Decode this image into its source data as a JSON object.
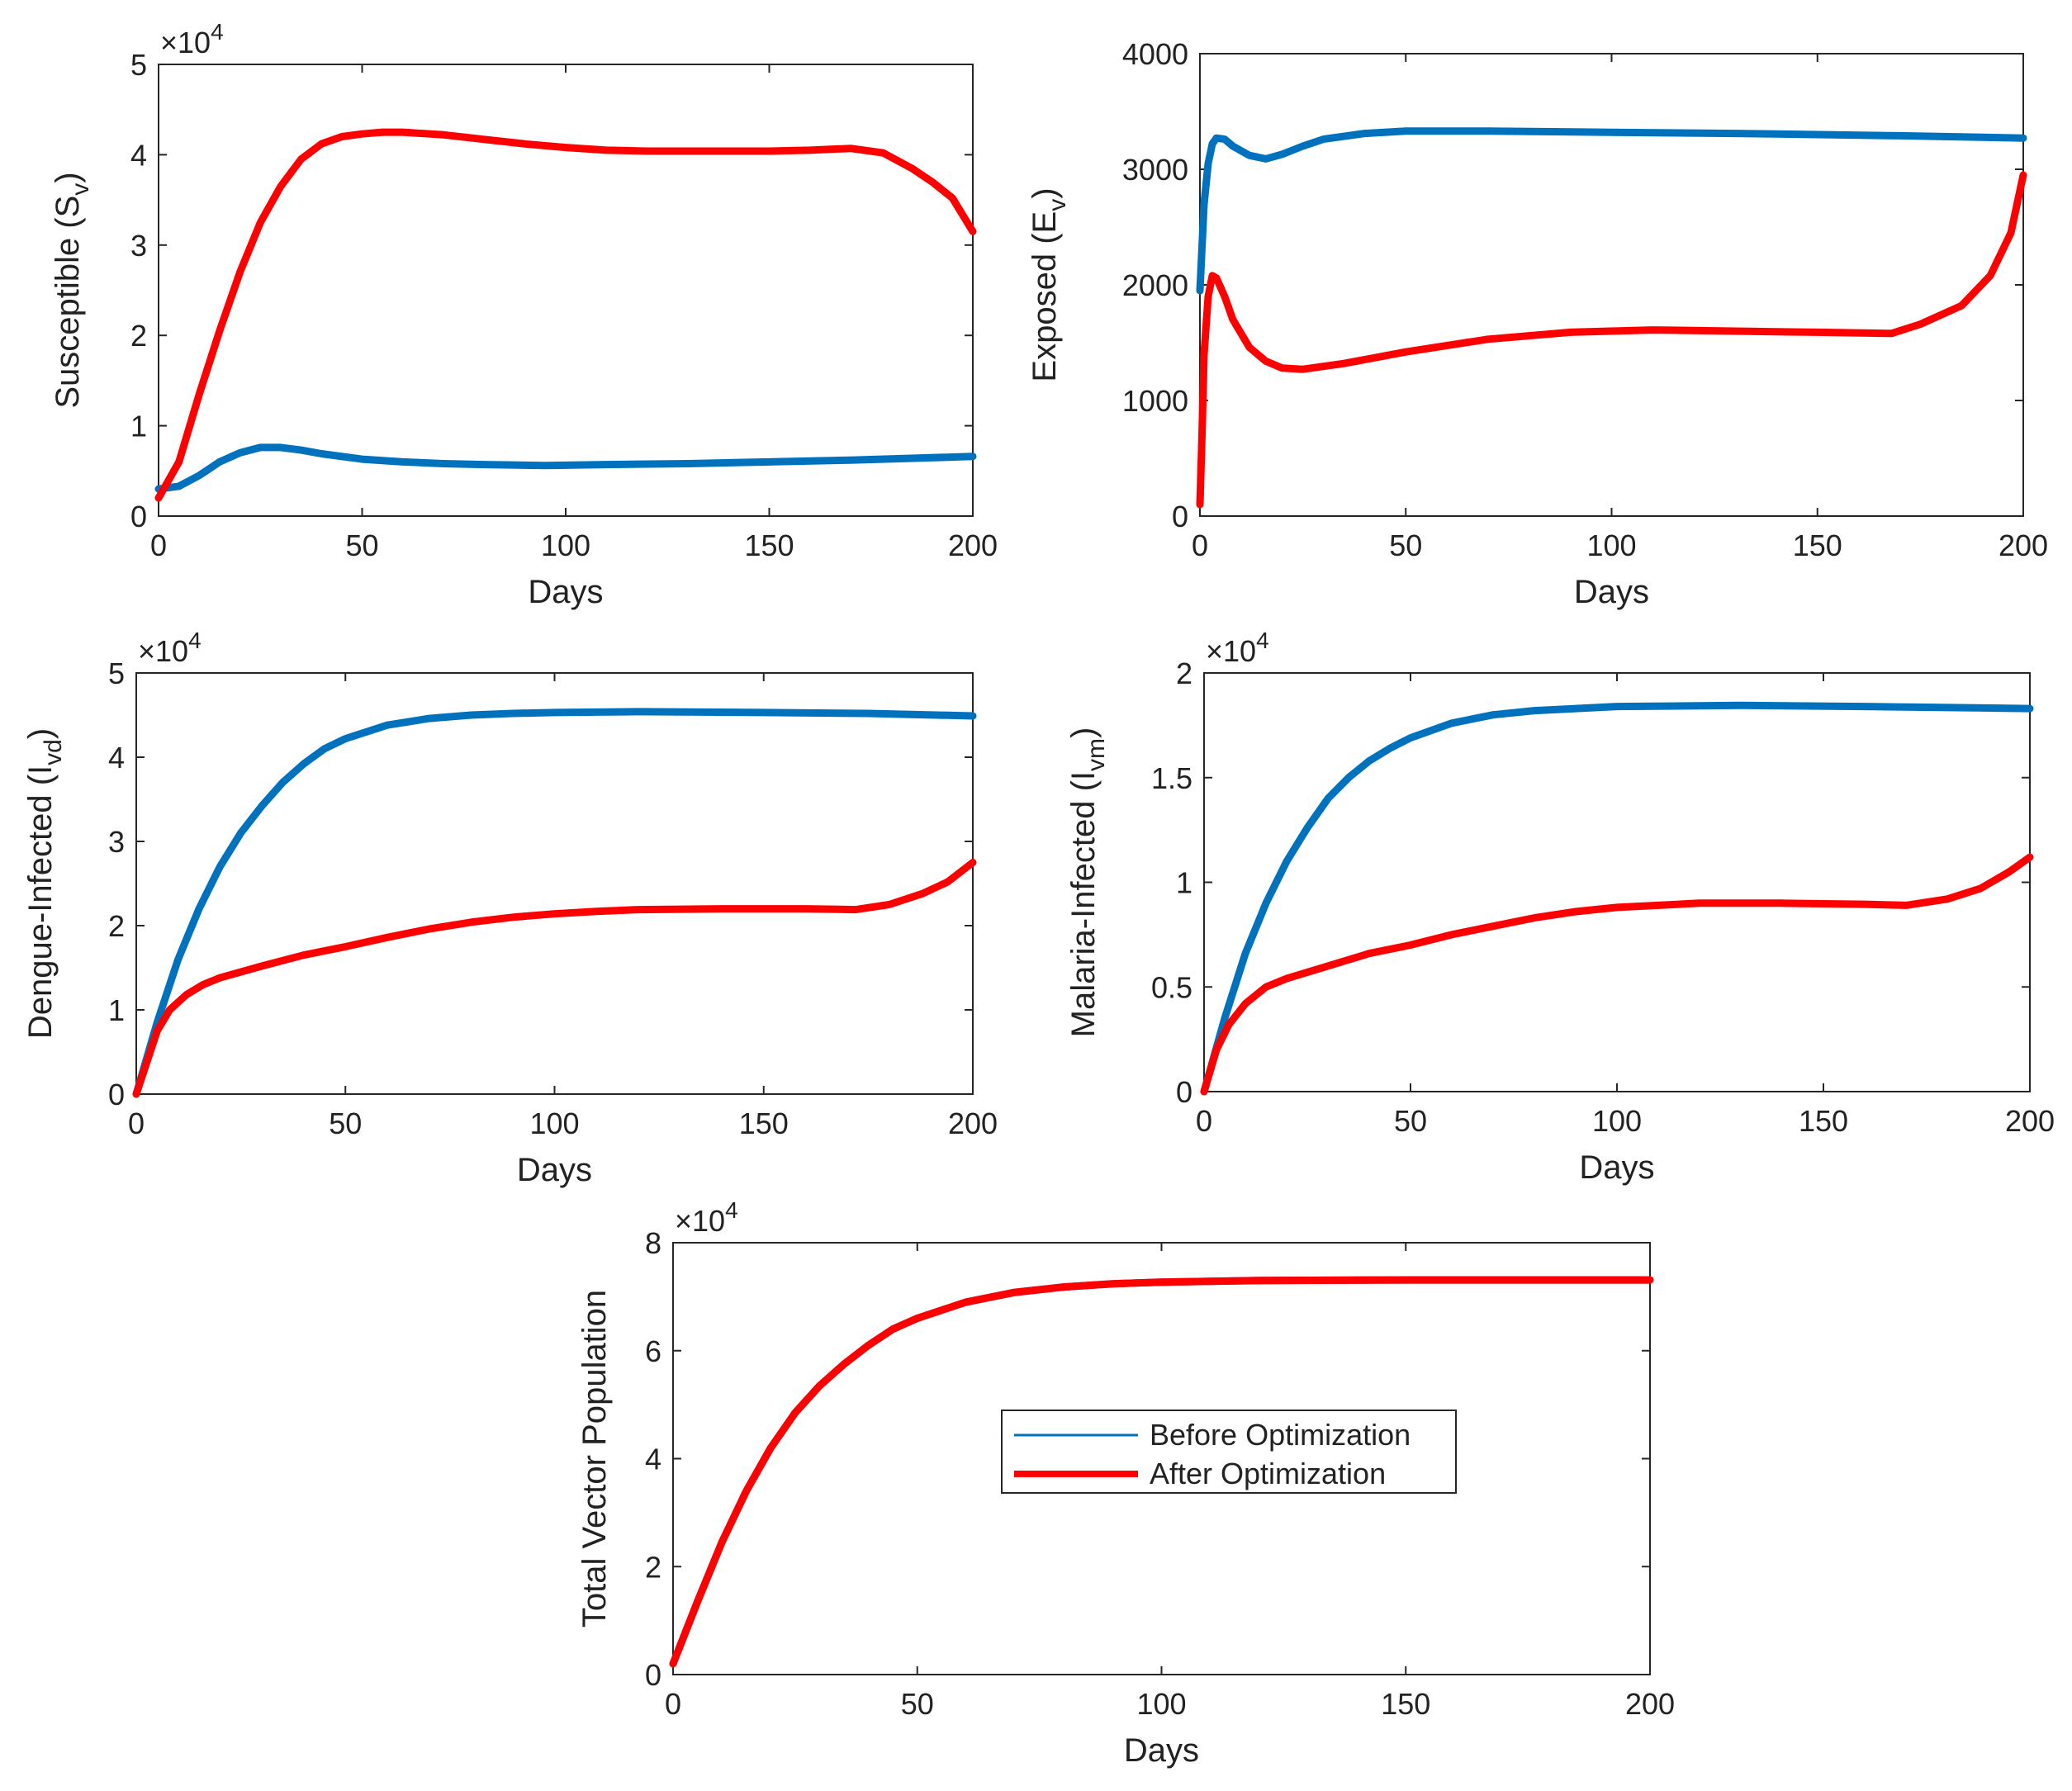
{
  "figure": {
    "legend": {
      "entries": [
        {
          "label": "Before Optimization",
          "color": "#0072BD",
          "style": "thin"
        },
        {
          "label": "After Optimization",
          "color": "#FF0000",
          "style": "thick"
        }
      ],
      "placement": "center of bottom panel"
    }
  },
  "chart_data": [
    {
      "id": "susceptible",
      "type": "line",
      "title": "",
      "xlabel": "Days",
      "ylabel": "Susceptible (S",
      "ylabel_sub": "v",
      "ylabel_tail": ")",
      "multiplier": "×10",
      "multiplier_exp": "4",
      "xlim": [
        0,
        200
      ],
      "ylim": [
        0,
        5
      ],
      "xticks": [
        0,
        50,
        100,
        150,
        200
      ],
      "yticks": [
        0,
        1,
        2,
        3,
        4,
        5
      ],
      "series": [
        {
          "name": "Before Optimization",
          "color": "#0072BD",
          "points": [
            [
              0,
              0.3
            ],
            [
              5,
              0.33
            ],
            [
              10,
              0.45
            ],
            [
              15,
              0.6
            ],
            [
              20,
              0.7
            ],
            [
              25,
              0.76
            ],
            [
              30,
              0.76
            ],
            [
              35,
              0.73
            ],
            [
              40,
              0.69
            ],
            [
              50,
              0.63
            ],
            [
              60,
              0.6
            ],
            [
              70,
              0.58
            ],
            [
              80,
              0.57
            ],
            [
              95,
              0.56
            ],
            [
              110,
              0.57
            ],
            [
              130,
              0.58
            ],
            [
              150,
              0.6
            ],
            [
              170,
              0.62
            ],
            [
              200,
              0.66
            ]
          ]
        },
        {
          "name": "After Optimization",
          "color": "#FF0000",
          "points": [
            [
              0,
              0.2
            ],
            [
              5,
              0.6
            ],
            [
              10,
              1.35
            ],
            [
              15,
              2.05
            ],
            [
              20,
              2.7
            ],
            [
              25,
              3.25
            ],
            [
              30,
              3.65
            ],
            [
              35,
              3.95
            ],
            [
              40,
              4.12
            ],
            [
              45,
              4.2
            ],
            [
              50,
              4.23
            ],
            [
              55,
              4.25
            ],
            [
              60,
              4.25
            ],
            [
              70,
              4.22
            ],
            [
              80,
              4.17
            ],
            [
              90,
              4.12
            ],
            [
              100,
              4.08
            ],
            [
              110,
              4.05
            ],
            [
              120,
              4.04
            ],
            [
              130,
              4.04
            ],
            [
              140,
              4.04
            ],
            [
              150,
              4.04
            ],
            [
              160,
              4.05
            ],
            [
              170,
              4.07
            ],
            [
              178,
              4.02
            ],
            [
              185,
              3.85
            ],
            [
              190,
              3.7
            ],
            [
              195,
              3.52
            ],
            [
              200,
              3.15
            ]
          ]
        }
      ]
    },
    {
      "id": "exposed",
      "type": "line",
      "title": "",
      "xlabel": "Days",
      "ylabel": "Exposed (E",
      "ylabel_sub": "v",
      "ylabel_tail": ")",
      "multiplier": "",
      "multiplier_exp": "",
      "xlim": [
        0,
        200
      ],
      "ylim": [
        0,
        4000
      ],
      "xticks": [
        0,
        50,
        100,
        150,
        200
      ],
      "yticks": [
        0,
        1000,
        2000,
        3000,
        4000
      ],
      "series": [
        {
          "name": "Before Optimization",
          "color": "#0072BD",
          "points": [
            [
              0,
              1950
            ],
            [
              1,
              2700
            ],
            [
              2,
              3050
            ],
            [
              3,
              3220
            ],
            [
              4,
              3270
            ],
            [
              6,
              3260
            ],
            [
              8,
              3200
            ],
            [
              12,
              3120
            ],
            [
              16,
              3090
            ],
            [
              20,
              3130
            ],
            [
              25,
              3200
            ],
            [
              30,
              3260
            ],
            [
              40,
              3310
            ],
            [
              50,
              3330
            ],
            [
              70,
              3330
            ],
            [
              100,
              3320
            ],
            [
              130,
              3310
            ],
            [
              170,
              3290
            ],
            [
              200,
              3270
            ]
          ]
        },
        {
          "name": "After Optimization",
          "color": "#FF0000",
          "points": [
            [
              0,
              100
            ],
            [
              0.5,
              700
            ],
            [
              1,
              1400
            ],
            [
              2,
              1900
            ],
            [
              3,
              2080
            ],
            [
              4,
              2060
            ],
            [
              6,
              1900
            ],
            [
              8,
              1700
            ],
            [
              12,
              1460
            ],
            [
              16,
              1340
            ],
            [
              20,
              1280
            ],
            [
              25,
              1270
            ],
            [
              35,
              1320
            ],
            [
              50,
              1420
            ],
            [
              70,
              1530
            ],
            [
              90,
              1590
            ],
            [
              110,
              1610
            ],
            [
              130,
              1600
            ],
            [
              150,
              1590
            ],
            [
              168,
              1580
            ],
            [
              175,
              1660
            ],
            [
              185,
              1820
            ],
            [
              192,
              2080
            ],
            [
              197,
              2450
            ],
            [
              200,
              2950
            ]
          ]
        }
      ]
    },
    {
      "id": "dengue",
      "type": "line",
      "title": "",
      "xlabel": "Days",
      "ylabel": "Dengue-Infected (I",
      "ylabel_sub": "vd",
      "ylabel_tail": ")",
      "multiplier": "×10",
      "multiplier_exp": "4",
      "xlim": [
        0,
        200
      ],
      "ylim": [
        0,
        5
      ],
      "xticks": [
        0,
        50,
        100,
        150,
        200
      ],
      "yticks": [
        0,
        1,
        2,
        3,
        4,
        5
      ],
      "series": [
        {
          "name": "Before Optimization",
          "color": "#0072BD",
          "points": [
            [
              0,
              0
            ],
            [
              5,
              0.85
            ],
            [
              10,
              1.6
            ],
            [
              15,
              2.2
            ],
            [
              20,
              2.7
            ],
            [
              25,
              3.1
            ],
            [
              30,
              3.42
            ],
            [
              35,
              3.7
            ],
            [
              40,
              3.92
            ],
            [
              45,
              4.1
            ],
            [
              50,
              4.22
            ],
            [
              60,
              4.38
            ],
            [
              70,
              4.46
            ],
            [
              80,
              4.5
            ],
            [
              90,
              4.52
            ],
            [
              100,
              4.53
            ],
            [
              120,
              4.54
            ],
            [
              150,
              4.53
            ],
            [
              175,
              4.52
            ],
            [
              200,
              4.49
            ]
          ]
        },
        {
          "name": "After Optimization",
          "color": "#FF0000",
          "points": [
            [
              0,
              0
            ],
            [
              2,
              0.3
            ],
            [
              5,
              0.75
            ],
            [
              8,
              1.0
            ],
            [
              12,
              1.18
            ],
            [
              16,
              1.3
            ],
            [
              20,
              1.38
            ],
            [
              30,
              1.52
            ],
            [
              40,
              1.65
            ],
            [
              50,
              1.75
            ],
            [
              60,
              1.86
            ],
            [
              70,
              1.96
            ],
            [
              80,
              2.04
            ],
            [
              90,
              2.1
            ],
            [
              100,
              2.14
            ],
            [
              110,
              2.17
            ],
            [
              120,
              2.19
            ],
            [
              140,
              2.2
            ],
            [
              160,
              2.2
            ],
            [
              172,
              2.19
            ],
            [
              180,
              2.25
            ],
            [
              188,
              2.38
            ],
            [
              194,
              2.52
            ],
            [
              200,
              2.75
            ]
          ]
        }
      ]
    },
    {
      "id": "malaria",
      "type": "line",
      "title": "",
      "xlabel": "Days",
      "ylabel": "Malaria-Infected (I",
      "ylabel_sub": "vm",
      "ylabel_tail": ")",
      "multiplier": "×10",
      "multiplier_exp": "4",
      "xlim": [
        0,
        200
      ],
      "ylim": [
        0,
        2
      ],
      "xticks": [
        0,
        50,
        100,
        150,
        200
      ],
      "yticks": [
        0,
        0.5,
        1,
        1.5,
        2
      ],
      "ytick_labels": [
        "0",
        "0.5",
        "1",
        "1.5",
        "2"
      ],
      "series": [
        {
          "name": "Before Optimization",
          "color": "#0072BD",
          "points": [
            [
              0,
              0
            ],
            [
              5,
              0.35
            ],
            [
              10,
              0.66
            ],
            [
              15,
              0.9
            ],
            [
              20,
              1.1
            ],
            [
              25,
              1.26
            ],
            [
              30,
              1.4
            ],
            [
              35,
              1.5
            ],
            [
              40,
              1.58
            ],
            [
              45,
              1.64
            ],
            [
              50,
              1.69
            ],
            [
              60,
              1.76
            ],
            [
              70,
              1.8
            ],
            [
              80,
              1.82
            ],
            [
              90,
              1.83
            ],
            [
              100,
              1.84
            ],
            [
              130,
              1.845
            ],
            [
              160,
              1.84
            ],
            [
              200,
              1.83
            ]
          ]
        },
        {
          "name": "After Optimization",
          "color": "#FF0000",
          "points": [
            [
              0,
              0
            ],
            [
              3,
              0.2
            ],
            [
              6,
              0.32
            ],
            [
              10,
              0.42
            ],
            [
              15,
              0.5
            ],
            [
              20,
              0.54
            ],
            [
              30,
              0.6
            ],
            [
              40,
              0.66
            ],
            [
              50,
              0.7
            ],
            [
              60,
              0.75
            ],
            [
              70,
              0.79
            ],
            [
              80,
              0.83
            ],
            [
              90,
              0.86
            ],
            [
              100,
              0.88
            ],
            [
              110,
              0.89
            ],
            [
              120,
              0.9
            ],
            [
              140,
              0.9
            ],
            [
              160,
              0.895
            ],
            [
              170,
              0.89
            ],
            [
              180,
              0.92
            ],
            [
              188,
              0.97
            ],
            [
              195,
              1.05
            ],
            [
              200,
              1.12
            ]
          ]
        }
      ]
    },
    {
      "id": "total",
      "type": "line",
      "title": "",
      "xlabel": "Days",
      "ylabel": "Total Vector Population",
      "ylabel_sub": "",
      "ylabel_tail": "",
      "multiplier": "×10",
      "multiplier_exp": "4",
      "xlim": [
        0,
        200
      ],
      "ylim": [
        0,
        8
      ],
      "xticks": [
        0,
        50,
        100,
        150,
        200
      ],
      "yticks": [
        0,
        2,
        4,
        6,
        8
      ],
      "series": [
        {
          "name": "Before Optimization",
          "color": "#0072BD",
          "points": [
            [
              0,
              0.2
            ],
            [
              5,
              1.35
            ],
            [
              10,
              2.45
            ],
            [
              15,
              3.4
            ],
            [
              20,
              4.2
            ],
            [
              25,
              4.85
            ],
            [
              30,
              5.35
            ],
            [
              35,
              5.75
            ],
            [
              40,
              6.1
            ],
            [
              45,
              6.4
            ],
            [
              50,
              6.6
            ],
            [
              60,
              6.9
            ],
            [
              70,
              7.08
            ],
            [
              80,
              7.18
            ],
            [
              90,
              7.24
            ],
            [
              100,
              7.27
            ],
            [
              120,
              7.3
            ],
            [
              150,
              7.31
            ],
            [
              200,
              7.31
            ]
          ]
        },
        {
          "name": "After Optimization",
          "color": "#FF0000",
          "points": [
            [
              0,
              0.2
            ],
            [
              5,
              1.35
            ],
            [
              10,
              2.45
            ],
            [
              15,
              3.4
            ],
            [
              20,
              4.2
            ],
            [
              25,
              4.85
            ],
            [
              30,
              5.35
            ],
            [
              35,
              5.75
            ],
            [
              40,
              6.1
            ],
            [
              45,
              6.4
            ],
            [
              50,
              6.6
            ],
            [
              60,
              6.9
            ],
            [
              70,
              7.08
            ],
            [
              80,
              7.18
            ],
            [
              90,
              7.24
            ],
            [
              100,
              7.27
            ],
            [
              120,
              7.3
            ],
            [
              150,
              7.31
            ],
            [
              200,
              7.31
            ]
          ]
        }
      ]
    }
  ]
}
